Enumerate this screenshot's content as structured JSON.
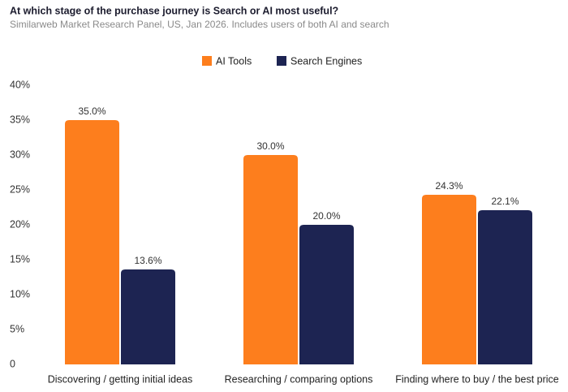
{
  "chart_data": {
    "type": "bar",
    "title": "At which stage of the purchase journey is Search or AI most useful?",
    "subtitle": "Similarweb Market Research Panel, US, Jan 2026. Includes users of both AI and search",
    "categories": [
      "Discovering / getting initial ideas",
      "Researching / comparing options",
      "Finding where to buy / the best price"
    ],
    "series": [
      {
        "name": "AI Tools",
        "color": "#fd7e1d",
        "values": [
          35.0,
          30.0,
          24.3
        ],
        "value_labels": [
          "35.0%",
          "30.0%",
          "24.3%"
        ]
      },
      {
        "name": "Search Engines",
        "color": "#1d2452",
        "values": [
          13.6,
          20.0,
          22.1
        ],
        "value_labels": [
          "13.6%",
          "20.0%",
          "22.1%"
        ]
      }
    ],
    "ylim": [
      0,
      40
    ],
    "yticks": [
      0,
      {
        "value": 5,
        "label": "5%"
      },
      {
        "value": 10,
        "label": "10%"
      },
      {
        "value": 15,
        "label": "15%"
      },
      {
        "value": 20,
        "label": "20%"
      },
      {
        "value": 25,
        "label": "25%"
      },
      {
        "value": 30,
        "label": "30%"
      },
      {
        "value": 35,
        "label": "35%"
      },
      {
        "value": 40,
        "label": "40%"
      }
    ],
    "legend": "top"
  }
}
